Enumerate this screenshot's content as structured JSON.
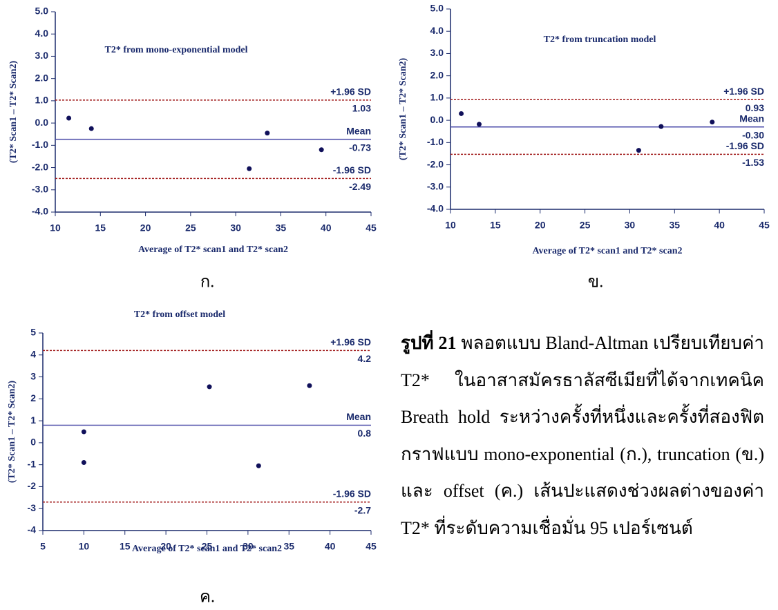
{
  "chart_data": [
    {
      "type": "scatter",
      "title": "T2* from mono-exponential model",
      "xlabel": "Average of T2* scan1 and T2* scan2",
      "ylabel": "(T2* Scan1 – T2* Scan2)",
      "panel_label": "ก.",
      "xlim": [
        10,
        45
      ],
      "xticks": [
        10,
        15,
        20,
        25,
        30,
        35,
        40,
        45
      ],
      "ylim": [
        -4,
        5
      ],
      "yticks": [
        {
          "value": -4,
          "label": "-4.0"
        },
        {
          "value": -3,
          "label": "-3.0"
        },
        {
          "value": -2,
          "label": "-2.0"
        },
        {
          "value": -1,
          "label": "-1.0"
        },
        {
          "value": 0,
          "label": "0.0"
        },
        {
          "value": 1,
          "label": "1.0"
        },
        {
          "value": 2,
          "label": "2.0"
        },
        {
          "value": 3,
          "label": "3.0"
        },
        {
          "value": 4,
          "label": "4.0"
        },
        {
          "value": 5,
          "label": "5.0"
        }
      ],
      "series": [
        {
          "color": "#10105a",
          "x": [
            11.5,
            14,
            31.5,
            33.5,
            39.5
          ],
          "values": [
            0.22,
            -0.25,
            -2.05,
            -0.45,
            -1.2
          ]
        }
      ],
      "hlines": [
        {
          "label": "+1.96 SD",
          "value": 1.03,
          "color": "#a01818",
          "dashed": true
        },
        {
          "label": "Mean",
          "value": -0.73,
          "color": "#4a4aa8",
          "dashed": false
        },
        {
          "label": "-1.96 SD",
          "value": -2.49,
          "color": "#a01818",
          "dashed": true
        }
      ]
    },
    {
      "type": "scatter",
      "title": "T2* from truncation model",
      "xlabel": "Average of T2* scan1 and T2* scan2",
      "ylabel": "(T2* Scan1 – T2* Scan2)",
      "panel_label": "ข.",
      "xlim": [
        10,
        45
      ],
      "xticks": [
        10,
        15,
        20,
        25,
        30,
        35,
        40,
        45
      ],
      "ylim": [
        -4,
        5
      ],
      "yticks": [
        {
          "value": -4,
          "label": "-4.0"
        },
        {
          "value": -3,
          "label": "-3.0"
        },
        {
          "value": -2,
          "label": "-2.0"
        },
        {
          "value": -1,
          "label": "-1.0"
        },
        {
          "value": 0,
          "label": "0.0"
        },
        {
          "value": 1,
          "label": "1.0"
        },
        {
          "value": 2,
          "label": "2.0"
        },
        {
          "value": 3,
          "label": "3.0"
        },
        {
          "value": 4,
          "label": "4.0"
        },
        {
          "value": 5,
          "label": "5.0"
        }
      ],
      "series": [
        {
          "color": "#10105a",
          "x": [
            11.2,
            13.2,
            31,
            33.5,
            39.2
          ],
          "values": [
            0.3,
            -0.18,
            -1.35,
            -0.28,
            -0.08
          ]
        }
      ],
      "hlines": [
        {
          "label": "+1.96 SD",
          "value": 0.93,
          "color": "#a01818",
          "dashed": true
        },
        {
          "label": "Mean",
          "value": -0.3,
          "value_label": "-0.30",
          "color": "#4a4aa8",
          "dashed": false
        },
        {
          "label": "-1.96 SD",
          "value": -1.53,
          "color": "#a01818",
          "dashed": true
        }
      ]
    },
    {
      "type": "scatter",
      "title": "T2* from offset model",
      "xlabel": "Average of T2* scan1 and T2* scan2",
      "ylabel": "(T2* Scan1 – T2* Scan2)",
      "panel_label": "ค.",
      "xlim": [
        5,
        45
      ],
      "xticks": [
        5,
        10,
        15,
        20,
        25,
        30,
        35,
        40,
        45
      ],
      "ylim": [
        -4,
        5
      ],
      "yticks": [
        -4,
        -3,
        -2,
        -1,
        0,
        1,
        2,
        3,
        4,
        5
      ],
      "series": [
        {
          "color": "#10105a",
          "x": [
            10,
            10,
            25.3,
            31.3,
            37.5
          ],
          "values": [
            0.5,
            -0.9,
            2.55,
            -1.05,
            2.6
          ]
        }
      ],
      "hlines": [
        {
          "label": "+1.96 SD",
          "value": 4.2,
          "color": "#a01818",
          "dashed": true
        },
        {
          "label": "Mean",
          "value": 0.8,
          "color": "#4a4aa8",
          "dashed": false
        },
        {
          "label": "-1.96 SD",
          "value": -2.7,
          "color": "#a01818",
          "dashed": true
        }
      ]
    }
  ],
  "caption": {
    "label": "รูปที่ 21",
    "text": "พลอตแบบ Bland-Altman เปรียบเทียบค่า T2* ในอาสาสมัครธาลัสซีเมียที่ได้จากเทคนิค Breath hold ระหว่างครั้งที่หนึ่งและครั้งที่สองฟิตกราฟแบบ mono-exponential (ก.), truncation (ข.) และ offset (ค.) เส้นปะแสดงช่วงผลต่างของค่า T2* ที่ระดับความเชื่อมั่น 95 เปอร์เซนต์"
  }
}
